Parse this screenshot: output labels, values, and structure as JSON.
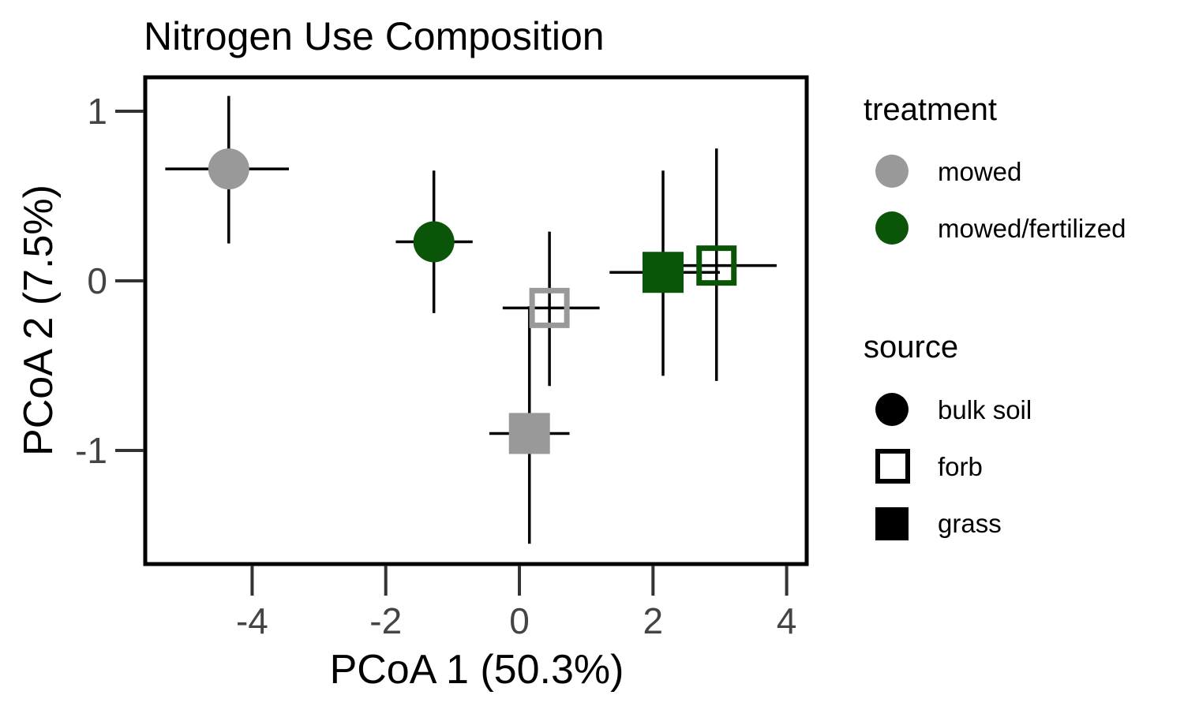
{
  "chart_data": {
    "type": "scatter",
    "title": "Nitrogen Use Composition",
    "xlabel": "PCoA 1 (50.3%)",
    "ylabel": "PCoA 2 (7.5%)",
    "xlim": [
      -5.6,
      4.3
    ],
    "ylim": [
      -1.67,
      1.2
    ],
    "xticks": [
      -4,
      -2,
      0,
      2,
      4
    ],
    "xtick_labels": [
      "-4",
      "-2",
      "0",
      "2",
      "4"
    ],
    "yticks": [
      -1,
      0,
      1
    ],
    "ytick_labels": [
      "-1",
      "0",
      "1"
    ],
    "grid": false,
    "legend_placement": "right",
    "points": [
      {
        "treatment": "mowed",
        "source": "bulk soil",
        "x": -4.35,
        "y": 0.66,
        "x_err_low": -5.3,
        "x_err_high": -3.45,
        "y_err_low": 0.22,
        "y_err_high": 1.09
      },
      {
        "treatment": "mowed/fertilized",
        "source": "bulk soil",
        "x": -1.28,
        "y": 0.23,
        "x_err_low": -1.85,
        "x_err_high": -0.7,
        "y_err_low": -0.19,
        "y_err_high": 0.65
      },
      {
        "treatment": "mowed",
        "source": "forb",
        "x": 0.45,
        "y": -0.16,
        "x_err_low": -0.25,
        "x_err_high": 1.2,
        "y_err_low": -0.62,
        "y_err_high": 0.29
      },
      {
        "treatment": "mowed",
        "source": "grass",
        "x": 0.15,
        "y": -0.9,
        "x_err_low": -0.45,
        "x_err_high": 0.75,
        "y_err_low": -1.55,
        "y_err_high": -0.15
      },
      {
        "treatment": "mowed/fertilized",
        "source": "grass",
        "x": 2.15,
        "y": 0.05,
        "x_err_low": 1.35,
        "x_err_high": 3.0,
        "y_err_low": -0.56,
        "y_err_high": 0.65
      },
      {
        "treatment": "mowed/fertilized",
        "source": "forb",
        "x": 2.95,
        "y": 0.09,
        "x_err_low": 2.2,
        "x_err_high": 3.85,
        "y_err_low": -0.59,
        "y_err_high": 0.78
      }
    ],
    "legend": {
      "treatment": {
        "title": "treatment",
        "entries": [
          {
            "label": "mowed",
            "color": "#999999"
          },
          {
            "label": "mowed/fertilized",
            "color": "#0b5509"
          }
        ]
      },
      "source": {
        "title": "source",
        "entries": [
          {
            "label": "bulk soil",
            "shape": "filled-circle"
          },
          {
            "label": "forb",
            "shape": "open-square"
          },
          {
            "label": "grass",
            "shape": "filled-square"
          }
        ]
      }
    }
  },
  "colors": {
    "mowed": "#999999",
    "mowed_fertilized": "#0b5509",
    "axis": "#000000",
    "tick_text": "#444444"
  }
}
